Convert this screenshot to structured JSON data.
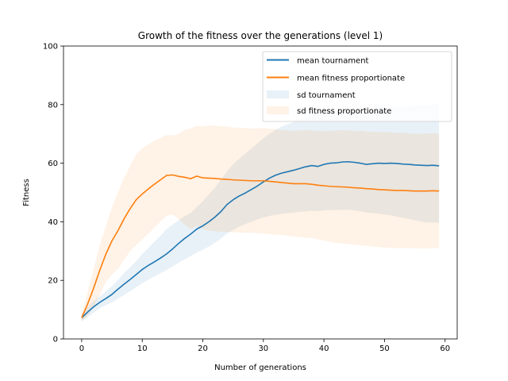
{
  "chart_data": {
    "type": "line",
    "title": "Growth of the fitness over the generations (level 1)",
    "xlabel": "Number of generations",
    "ylabel": "Fitness",
    "xlim": [
      -3,
      62
    ],
    "ylim": [
      0,
      100
    ],
    "xticks": [
      0,
      10,
      20,
      30,
      40,
      50,
      60
    ],
    "yticks": [
      0,
      20,
      40,
      60,
      80,
      100
    ],
    "grid": false,
    "legend": "top-right",
    "x": [
      0,
      1,
      2,
      3,
      4,
      5,
      6,
      7,
      8,
      9,
      10,
      11,
      12,
      13,
      14,
      15,
      16,
      17,
      18,
      19,
      20,
      21,
      22,
      23,
      24,
      25,
      26,
      27,
      28,
      29,
      30,
      31,
      32,
      33,
      34,
      35,
      36,
      37,
      38,
      39,
      40,
      41,
      42,
      43,
      44,
      45,
      46,
      47,
      48,
      49,
      50,
      51,
      52,
      53,
      54,
      55,
      56,
      57,
      58,
      59
    ],
    "series": [
      {
        "name": "mean tournament",
        "color": "#1f77b4",
        "values": [
          7.2,
          9.2,
          11.0,
          12.5,
          13.8,
          15.2,
          17.0,
          18.7,
          20.3,
          22.0,
          23.7,
          25.1,
          26.3,
          27.6,
          29.0,
          30.7,
          32.6,
          34.3,
          35.8,
          37.5,
          38.6,
          40.0,
          41.6,
          43.5,
          45.9,
          47.5,
          48.8,
          49.8,
          51.0,
          52.2,
          53.6,
          54.9,
          55.9,
          56.6,
          57.1,
          57.6,
          58.2,
          58.8,
          59.2,
          58.9,
          59.6,
          60.0,
          60.1,
          60.4,
          60.5,
          60.3,
          60.0,
          59.6,
          59.8,
          60.0,
          59.9,
          60.0,
          59.9,
          59.7,
          59.6,
          59.4,
          59.3,
          59.2,
          59.3,
          59.1
        ]
      },
      {
        "name": "mean fitness proportionate",
        "color": "#ff7f0e",
        "values": [
          7.2,
          12.0,
          17.5,
          23.5,
          29.0,
          33.5,
          37.0,
          41.0,
          44.5,
          47.5,
          49.5,
          51.2,
          52.8,
          54.3,
          55.8,
          56.0,
          55.5,
          55.2,
          54.7,
          55.6,
          55.0,
          54.9,
          54.8,
          54.6,
          54.5,
          54.3,
          54.2,
          54.1,
          54.0,
          54.0,
          54.0,
          53.8,
          53.6,
          53.4,
          53.2,
          53.0,
          53.0,
          53.0,
          52.8,
          52.5,
          52.3,
          52.1,
          52.0,
          51.9,
          51.8,
          51.6,
          51.5,
          51.3,
          51.2,
          51.0,
          50.9,
          50.8,
          50.7,
          50.7,
          50.6,
          50.5,
          50.5,
          50.5,
          50.6,
          50.5
        ]
      }
    ],
    "bands": [
      {
        "name": "sd tournament",
        "color": "#1f77b4",
        "lower": [
          6.0,
          7.5,
          9.0,
          10.5,
          11.5,
          12.5,
          13.8,
          15.0,
          16.3,
          17.6,
          19.0,
          20.2,
          21.3,
          22.4,
          23.5,
          24.7,
          26.0,
          27.2,
          28.3,
          29.5,
          30.5,
          31.5,
          32.8,
          34.3,
          36.0,
          37.2,
          38.3,
          39.2,
          40.0,
          40.8,
          41.5,
          42.0,
          42.4,
          42.7,
          43.0,
          43.2,
          43.4,
          43.6,
          43.8,
          43.6,
          43.9,
          44.0,
          44.0,
          44.1,
          44.1,
          43.9,
          43.6,
          43.2,
          43.0,
          42.8,
          42.5,
          42.2,
          41.8,
          41.4,
          41.0,
          40.5,
          40.1,
          39.8,
          39.8,
          39.6
        ],
        "upper": [
          8.4,
          11.0,
          13.0,
          14.5,
          16.3,
          18.0,
          20.2,
          22.5,
          24.5,
          26.6,
          29.0,
          31.0,
          33.2,
          35.2,
          37.5,
          39.0,
          40.5,
          41.8,
          43.0,
          45.0,
          47.0,
          49.3,
          51.6,
          54.4,
          57.2,
          59.6,
          61.5,
          63.2,
          65.0,
          66.8,
          68.5,
          70.0,
          71.4,
          72.5,
          73.3,
          74.0,
          74.8,
          75.6,
          76.3,
          76.4,
          76.9,
          77.3,
          77.6,
          78.0,
          78.5,
          78.6,
          78.7,
          78.8,
          78.9,
          79.0,
          79.1,
          79.2,
          79.3,
          79.4,
          79.5,
          79.6,
          79.7,
          79.8,
          79.9,
          80.0
        ]
      },
      {
        "name": "sd fitness proportionate",
        "color": "#ff7f0e",
        "lower": [
          6.0,
          8.0,
          11.0,
          15.0,
          19.5,
          22.0,
          24.0,
          27.0,
          30.0,
          32.0,
          34.0,
          36.0,
          38.0,
          40.0,
          42.0,
          42.5,
          41.0,
          39.0,
          37.5,
          38.5,
          37.5,
          37.0,
          36.8,
          36.6,
          36.5,
          36.4,
          36.3,
          36.2,
          36.2,
          36.1,
          36.0,
          35.8,
          35.6,
          35.5,
          35.2,
          35.0,
          34.8,
          34.6,
          34.4,
          34.0,
          33.6,
          33.2,
          32.8,
          32.6,
          32.4,
          32.2,
          32.0,
          31.8,
          31.6,
          31.4,
          31.2,
          31.1,
          31.0,
          31.0,
          31.0,
          31.0,
          30.9,
          30.9,
          31.0,
          31.0
        ],
        "upper": [
          8.4,
          16.0,
          24.0,
          32.0,
          38.5,
          45.0,
          50.0,
          55.0,
          59.0,
          63.0,
          65.0,
          66.4,
          67.6,
          68.6,
          69.6,
          69.5,
          70.0,
          71.4,
          71.9,
          72.7,
          72.5,
          72.8,
          72.8,
          72.6,
          72.5,
          72.2,
          72.1,
          72.0,
          71.8,
          71.9,
          72.0,
          71.8,
          71.6,
          71.3,
          71.2,
          71.0,
          71.2,
          71.4,
          71.2,
          71.0,
          71.0,
          71.0,
          71.2,
          71.2,
          71.2,
          71.0,
          71.0,
          70.8,
          70.8,
          70.6,
          70.6,
          70.5,
          70.4,
          70.4,
          70.2,
          70.0,
          70.1,
          70.1,
          70.2,
          70.0
        ]
      }
    ]
  }
}
